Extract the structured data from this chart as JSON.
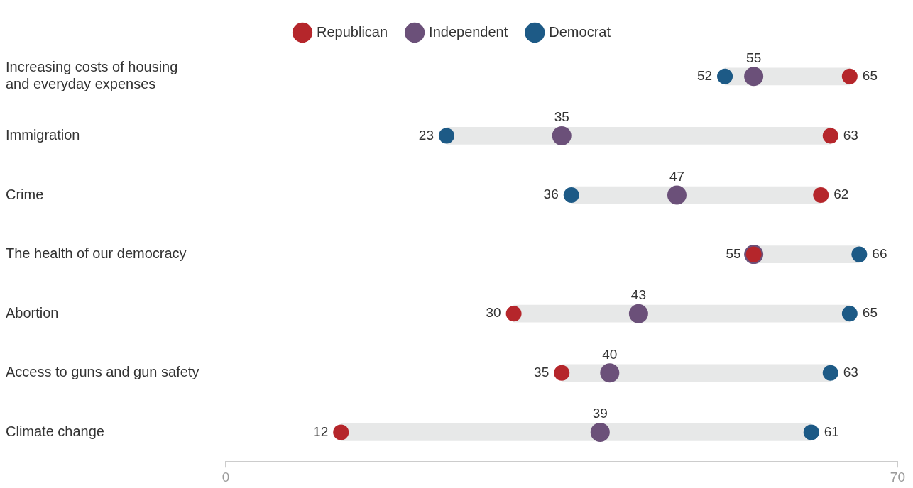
{
  "chart_data": {
    "type": "scatter",
    "orientation": "horizontal",
    "marker": "circle",
    "legend": "top",
    "categories": [
      "Increasing costs of housing and everyday expenses",
      "Immigration",
      "Crime",
      "The health of our democracy",
      "Abortion",
      "Access to guns and gun safety",
      "Climate change"
    ],
    "xlim": [
      0,
      70
    ],
    "xticks": [
      0,
      70
    ],
    "series": [
      {
        "type": "bar",
        "color": "#e7e8e8",
        "base": [
          52,
          23,
          36,
          55,
          30,
          35,
          12
        ],
        "values": [
          13,
          40,
          26,
          11,
          35,
          28,
          49
        ]
      },
      {
        "name": "Republican",
        "color": "#b5262b",
        "values": [
          65,
          63,
          62,
          55,
          30,
          35,
          12
        ],
        "value_labels": [
          "65",
          "63",
          "62",
          "55",
          "30",
          "35",
          "12"
        ]
      },
      {
        "name": "Independent",
        "color": "#6b5079",
        "values": [
          55,
          35,
          47,
          55,
          43,
          40,
          39
        ],
        "value_labels": [
          "55",
          "35",
          "47",
          null,
          "43",
          "40",
          "39"
        ]
      },
      {
        "name": "Democrat",
        "color": "#1d5a86",
        "values": [
          52,
          23,
          36,
          66,
          65,
          63,
          61
        ],
        "value_labels": [
          "52",
          "23",
          "36",
          "66",
          "65",
          "63",
          "61"
        ]
      }
    ]
  }
}
